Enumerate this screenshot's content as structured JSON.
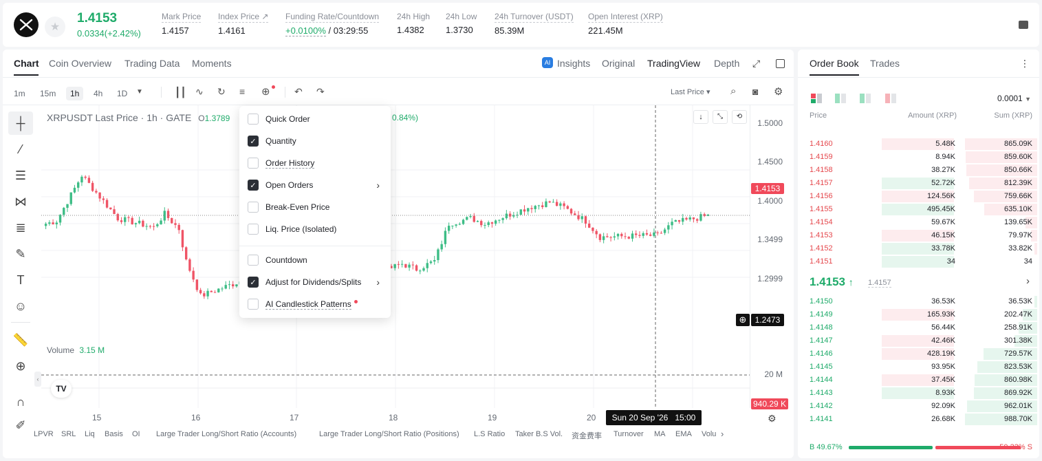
{
  "header": {
    "price": "1.4153",
    "change": "0.0334(+2.42%)",
    "stats": [
      {
        "label": "Mark Price",
        "value": "1.4157"
      },
      {
        "label": "Index Price ↗",
        "value": "1.4161"
      },
      {
        "label": "Funding Rate/Countdown",
        "value_green": "+0.0100%",
        "value": " / 03:29:55"
      },
      {
        "label": "24h High",
        "value": "1.4382"
      },
      {
        "label": "24h Low",
        "value": "1.3730"
      },
      {
        "label": "24h Turnover (USDT)",
        "value": "85.39M"
      },
      {
        "label": "Open Interest (XRP)",
        "value": "221.45M"
      }
    ]
  },
  "chart_tabs": [
    "Chart",
    "Coin Overview",
    "Trading Data",
    "Moments"
  ],
  "view_tabs": [
    "Insights",
    "Original",
    "TradingView",
    "Depth"
  ],
  "timeframes": [
    "1m",
    "15m",
    "1h",
    "4h",
    "1D"
  ],
  "toolbar": {
    "price_type": "Last Price"
  },
  "chart_info": {
    "symbol": "XRPUSDT Last Price · 1h · GATE",
    "o_label": "O",
    "o_value": "1.3789",
    "change_tail": "0.84%)",
    "volume_label": "Volume",
    "volume_value": "3.15 M"
  },
  "dropdown": {
    "items": [
      {
        "label": "Quick Order",
        "checked": false
      },
      {
        "label": "Quantity",
        "checked": true
      },
      {
        "label": "Order History",
        "checked": false
      },
      {
        "label": "Open Orders",
        "checked": true
      },
      {
        "label": "Break-Even Price",
        "checked": false
      },
      {
        "label": "Liq. Price (Isolated)",
        "checked": false
      },
      {
        "label": "Countdown",
        "checked": false
      },
      {
        "label": "Adjust for Dividends/Splits",
        "checked": true
      },
      {
        "label": "AI Candlestick Patterns",
        "checked": false
      }
    ]
  },
  "price_axis": [
    "1.5000",
    "1.4500",
    "1.4000",
    "1.3499",
    "1.2999"
  ],
  "price_tags": {
    "last": "1.4153",
    "cross": "1.2473",
    "volume": "940.29 K",
    "vol_axis": "20 M"
  },
  "date_axis": [
    "15",
    "16",
    "17",
    "18",
    "19",
    "20"
  ],
  "crosshair_time": "Sun 20 Sep '26   15:00",
  "indicators": [
    "LPVR",
    "SRL",
    "Liq",
    "Basis",
    "OI",
    "Large Trader Long/Short Ratio (Accounts)",
    "Large Trader Long/Short Ratio (Positions)",
    "L.S Ratio",
    "Taker B.S Vol.",
    "资金费率",
    "Turnover",
    "MA",
    "EMA",
    "Volu"
  ],
  "orderbook": {
    "tabs": [
      "Order Book",
      "Trades"
    ],
    "precision": "0.0001",
    "headers": [
      "Price",
      "Amount (XRP)",
      "Sum (XRP)"
    ],
    "asks": [
      {
        "price": "1.4160",
        "amount": "5.48K",
        "sum": "865.09K",
        "amt_frac": 0.95,
        "sum_frac": 1.0,
        "amt_side": "red"
      },
      {
        "price": "1.4159",
        "amount": "8.94K",
        "sum": "859.60K",
        "amt_frac": 0,
        "sum_frac": 0.99,
        "amt_side": "none"
      },
      {
        "price": "1.4158",
        "amount": "38.27K",
        "sum": "850.66K",
        "amt_frac": 0,
        "sum_frac": 0.98,
        "amt_side": "none"
      },
      {
        "price": "1.4157",
        "amount": "52.72K",
        "sum": "812.39K",
        "amt_frac": 0.95,
        "sum_frac": 0.94,
        "amt_side": "green"
      },
      {
        "price": "1.4156",
        "amount": "124.56K",
        "sum": "759.66K",
        "amt_frac": 0.95,
        "sum_frac": 0.88,
        "amt_side": "red"
      },
      {
        "price": "1.4155",
        "amount": "495.45K",
        "sum": "635.10K",
        "amt_frac": 0.95,
        "sum_frac": 0.73,
        "amt_side": "green"
      },
      {
        "price": "1.4154",
        "amount": "59.67K",
        "sum": "139.65K",
        "amt_frac": 0,
        "sum_frac": 0.16,
        "amt_side": "none"
      },
      {
        "price": "1.4153",
        "amount": "46.15K",
        "sum": "79.97K",
        "amt_frac": 0.95,
        "sum_frac": 0.09,
        "amt_side": "red"
      },
      {
        "price": "1.4152",
        "amount": "33.78K",
        "sum": "33.82K",
        "amt_frac": 0.95,
        "sum_frac": 0.04,
        "amt_side": "green"
      },
      {
        "price": "1.4151",
        "amount": "34",
        "sum": "34",
        "amt_frac": 0.95,
        "sum_frac": 0,
        "amt_side": "green"
      }
    ],
    "mid_price": "1.4153",
    "mid_mark": "1.4157",
    "bids": [
      {
        "price": "1.4150",
        "amount": "36.53K",
        "sum": "36.53K",
        "amt_frac": 0,
        "sum_frac": 0.04,
        "amt_side": "none"
      },
      {
        "price": "1.4149",
        "amount": "165.93K",
        "sum": "202.47K",
        "amt_frac": 0.95,
        "sum_frac": 0.2,
        "amt_side": "red"
      },
      {
        "price": "1.4148",
        "amount": "56.44K",
        "sum": "258.91K",
        "amt_frac": 0,
        "sum_frac": 0.26,
        "amt_side": "none"
      },
      {
        "price": "1.4147",
        "amount": "42.46K",
        "sum": "301.38K",
        "amt_frac": 0.95,
        "sum_frac": 0.31,
        "amt_side": "red"
      },
      {
        "price": "1.4146",
        "amount": "428.19K",
        "sum": "729.57K",
        "amt_frac": 0.95,
        "sum_frac": 0.74,
        "amt_side": "red"
      },
      {
        "price": "1.4145",
        "amount": "93.95K",
        "sum": "823.53K",
        "amt_frac": 0,
        "sum_frac": 0.83,
        "amt_side": "none"
      },
      {
        "price": "1.4144",
        "amount": "37.45K",
        "sum": "860.98K",
        "amt_frac": 0.95,
        "sum_frac": 0.87,
        "amt_side": "red"
      },
      {
        "price": "1.4143",
        "amount": "8.93K",
        "sum": "869.92K",
        "amt_frac": 0.95,
        "sum_frac": 0.88,
        "amt_side": "green"
      },
      {
        "price": "1.4142",
        "amount": "92.09K",
        "sum": "962.01K",
        "amt_frac": 0,
        "sum_frac": 0.97,
        "amt_side": "none"
      },
      {
        "price": "1.4141",
        "amount": "26.68K",
        "sum": "988.70K",
        "amt_frac": 0,
        "sum_frac": 1.0,
        "amt_side": "none"
      }
    ],
    "buy_ratio": "B 49.67%",
    "sell_ratio": "50.33% S",
    "buy_frac": 0.4967
  },
  "chart_data": {
    "type": "candlestick",
    "interval": "1h",
    "x_ticks": [
      "15",
      "16",
      "17",
      "18",
      "19",
      "20"
    ],
    "ylim": [
      1.25,
      1.52
    ],
    "y_ticks": [
      1.5,
      1.45,
      1.4,
      1.3499,
      1.2999
    ],
    "last_price": 1.4153,
    "segments": [
      {
        "from": 1.398,
        "to": 1.405,
        "n": 4
      },
      {
        "from": 1.405,
        "to": 1.49,
        "n": 7
      },
      {
        "from": 1.49,
        "to": 1.41,
        "n": 10
      },
      {
        "from": 1.41,
        "to": 1.393,
        "n": 10
      },
      {
        "from": 1.393,
        "to": 1.418,
        "n": 3
      },
      {
        "from": 1.418,
        "to": 1.39,
        "n": 4
      },
      {
        "from": 1.39,
        "to": 1.33,
        "n": 2
      },
      {
        "from": 1.33,
        "to": 1.265,
        "n": 4
      },
      {
        "from": 1.265,
        "to": 1.295,
        "n": 12
      },
      {
        "from": 1.295,
        "to": 1.285,
        "n": 14
      },
      {
        "from": 1.285,
        "to": 1.305,
        "n": 22
      },
      {
        "from": 1.305,
        "to": 1.325,
        "n": 8
      },
      {
        "from": 1.325,
        "to": 1.315,
        "n": 4
      },
      {
        "from": 1.315,
        "to": 1.33,
        "n": 5
      },
      {
        "from": 1.33,
        "to": 1.4,
        "n": 4
      },
      {
        "from": 1.4,
        "to": 1.41,
        "n": 6
      },
      {
        "from": 1.41,
        "to": 1.4,
        "n": 4
      },
      {
        "from": 1.4,
        "to": 1.43,
        "n": 12
      },
      {
        "from": 1.43,
        "to": 1.44,
        "n": 6
      },
      {
        "from": 1.44,
        "to": 1.43,
        "n": 4
      },
      {
        "from": 1.43,
        "to": 1.405,
        "n": 6
      },
      {
        "from": 1.405,
        "to": 1.375,
        "n": 4
      },
      {
        "from": 1.375,
        "to": 1.378,
        "n": 16
      },
      {
        "from": 1.378,
        "to": 1.4,
        "n": 4
      },
      {
        "from": 1.4,
        "to": 1.415,
        "n": 10
      }
    ]
  }
}
